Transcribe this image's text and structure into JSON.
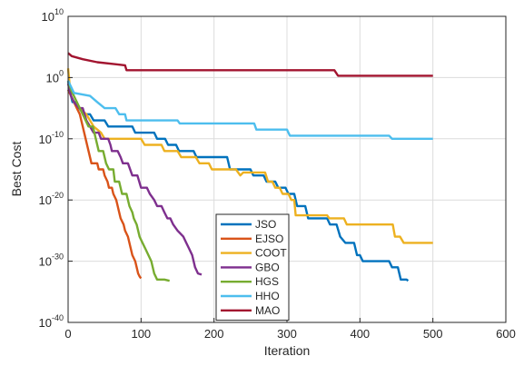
{
  "chart_data": {
    "type": "line",
    "title": "",
    "xlabel": "Iteration",
    "ylabel": "Best Cost",
    "xlim": [
      0,
      600
    ],
    "xticks": [
      0,
      100,
      200,
      300,
      400,
      500,
      600
    ],
    "yscale": "log",
    "ylim_exponent": [
      -40,
      10
    ],
    "yticks_exponent": [
      10,
      0,
      -10,
      -20,
      -30,
      -40
    ],
    "ytick_labels": [
      "10",
      "0",
      "-10",
      "-20",
      "-30",
      "-40"
    ],
    "grid": true,
    "legend_position": "bottom-center",
    "series": [
      {
        "name": "JSO",
        "color": "#0072bd",
        "points": [
          [
            0,
            -0.5
          ],
          [
            2,
            -2
          ],
          [
            6,
            -4
          ],
          [
            12,
            -4
          ],
          [
            15,
            -5
          ],
          [
            22,
            -6
          ],
          [
            30,
            -6
          ],
          [
            35,
            -7
          ],
          [
            50,
            -7
          ],
          [
            55,
            -8
          ],
          [
            88,
            -8
          ],
          [
            92,
            -9
          ],
          [
            118,
            -9
          ],
          [
            122,
            -10
          ],
          [
            133,
            -10
          ],
          [
            137,
            -11
          ],
          [
            148,
            -11
          ],
          [
            152,
            -12
          ],
          [
            172,
            -12
          ],
          [
            176,
            -13
          ],
          [
            218,
            -13
          ],
          [
            222,
            -15
          ],
          [
            250,
            -15
          ],
          [
            254,
            -16
          ],
          [
            268,
            -16
          ],
          [
            272,
            -17
          ],
          [
            284,
            -17
          ],
          [
            288,
            -18
          ],
          [
            298,
            -18
          ],
          [
            302,
            -19
          ],
          [
            310,
            -19
          ],
          [
            314,
            -21
          ],
          [
            325,
            -21
          ],
          [
            329,
            -23
          ],
          [
            355,
            -23
          ],
          [
            359,
            -24
          ],
          [
            368,
            -24
          ],
          [
            373,
            -26
          ],
          [
            380,
            -27
          ],
          [
            392,
            -27
          ],
          [
            396,
            -29
          ],
          [
            400,
            -29
          ],
          [
            404,
            -30
          ],
          [
            440,
            -30
          ],
          [
            444,
            -31
          ],
          [
            452,
            -31
          ],
          [
            456,
            -33
          ],
          [
            464,
            -33
          ],
          [
            466,
            -33.2
          ]
        ]
      },
      {
        "name": "EJSO",
        "color": "#d95319",
        "points": [
          [
            0,
            -2
          ],
          [
            4,
            -3
          ],
          [
            8,
            -4
          ],
          [
            12,
            -5
          ],
          [
            16,
            -6
          ],
          [
            20,
            -8
          ],
          [
            24,
            -10
          ],
          [
            28,
            -12
          ],
          [
            32,
            -14
          ],
          [
            40,
            -14
          ],
          [
            42,
            -15
          ],
          [
            48,
            -15
          ],
          [
            50,
            -16
          ],
          [
            54,
            -17
          ],
          [
            56,
            -18
          ],
          [
            60,
            -18
          ],
          [
            62,
            -19
          ],
          [
            66,
            -20
          ],
          [
            68,
            -21
          ],
          [
            70,
            -22
          ],
          [
            72,
            -23
          ],
          [
            76,
            -24
          ],
          [
            78,
            -25
          ],
          [
            82,
            -26
          ],
          [
            86,
            -28
          ],
          [
            88,
            -29
          ],
          [
            92,
            -30
          ],
          [
            94,
            -31
          ],
          [
            96,
            -32
          ],
          [
            98,
            -32.5
          ],
          [
            100,
            -32.8
          ]
        ]
      },
      {
        "name": "COOT",
        "color": "#edb120",
        "points": [
          [
            0,
            1.5
          ],
          [
            2,
            -1
          ],
          [
            4,
            -3
          ],
          [
            8,
            -4
          ],
          [
            15,
            -5
          ],
          [
            25,
            -6
          ],
          [
            35,
            -8
          ],
          [
            45,
            -9
          ],
          [
            50,
            -10
          ],
          [
            100,
            -10
          ],
          [
            105,
            -11
          ],
          [
            128,
            -11
          ],
          [
            132,
            -12
          ],
          [
            150,
            -12
          ],
          [
            155,
            -13
          ],
          [
            175,
            -13
          ],
          [
            180,
            -14
          ],
          [
            193,
            -14
          ],
          [
            197,
            -15
          ],
          [
            230,
            -15
          ],
          [
            236,
            -16
          ],
          [
            240,
            -15.5
          ],
          [
            270,
            -15.5
          ],
          [
            274,
            -17
          ],
          [
            280,
            -17
          ],
          [
            284,
            -18
          ],
          [
            290,
            -18
          ],
          [
            294,
            -19
          ],
          [
            302,
            -19
          ],
          [
            306,
            -20
          ],
          [
            310,
            -20
          ],
          [
            312,
            -22.5
          ],
          [
            355,
            -22.5
          ],
          [
            358,
            -23
          ],
          [
            378,
            -23
          ],
          [
            382,
            -24
          ],
          [
            445,
            -24
          ],
          [
            448,
            -26
          ],
          [
            455,
            -26
          ],
          [
            460,
            -27
          ],
          [
            500,
            -27
          ]
        ]
      },
      {
        "name": "GBO",
        "color": "#7e2f8e",
        "points": [
          [
            0,
            -1
          ],
          [
            4,
            -3
          ],
          [
            8,
            -4
          ],
          [
            15,
            -5
          ],
          [
            20,
            -5
          ],
          [
            25,
            -7
          ],
          [
            30,
            -8
          ],
          [
            35,
            -9
          ],
          [
            42,
            -9
          ],
          [
            45,
            -10
          ],
          [
            55,
            -10
          ],
          [
            58,
            -11
          ],
          [
            60,
            -12
          ],
          [
            68,
            -12
          ],
          [
            72,
            -13
          ],
          [
            75,
            -14
          ],
          [
            82,
            -14
          ],
          [
            88,
            -16
          ],
          [
            95,
            -16
          ],
          [
            100,
            -18
          ],
          [
            108,
            -18
          ],
          [
            112,
            -19
          ],
          [
            118,
            -20
          ],
          [
            122,
            -21
          ],
          [
            128,
            -21
          ],
          [
            132,
            -22
          ],
          [
            136,
            -23
          ],
          [
            140,
            -23
          ],
          [
            144,
            -24
          ],
          [
            150,
            -25
          ],
          [
            158,
            -26
          ],
          [
            162,
            -27
          ],
          [
            166,
            -28
          ],
          [
            170,
            -29
          ],
          [
            174,
            -31
          ],
          [
            178,
            -32
          ],
          [
            183,
            -32.2
          ]
        ]
      },
      {
        "name": "HGS",
        "color": "#77ac30",
        "points": [
          [
            0,
            -0.5
          ],
          [
            4,
            -2
          ],
          [
            8,
            -3
          ],
          [
            12,
            -4
          ],
          [
            16,
            -5
          ],
          [
            20,
            -6
          ],
          [
            24,
            -7
          ],
          [
            28,
            -8
          ],
          [
            34,
            -8
          ],
          [
            38,
            -10
          ],
          [
            42,
            -12
          ],
          [
            48,
            -12
          ],
          [
            52,
            -14
          ],
          [
            56,
            -15
          ],
          [
            62,
            -15
          ],
          [
            64,
            -17
          ],
          [
            70,
            -17
          ],
          [
            74,
            -19
          ],
          [
            80,
            -19
          ],
          [
            84,
            -21
          ],
          [
            88,
            -22
          ],
          [
            90,
            -23
          ],
          [
            94,
            -24
          ],
          [
            98,
            -26
          ],
          [
            102,
            -27
          ],
          [
            106,
            -28
          ],
          [
            110,
            -29
          ],
          [
            114,
            -30
          ],
          [
            118,
            -32
          ],
          [
            122,
            -33
          ],
          [
            132,
            -33
          ],
          [
            139,
            -33.2
          ]
        ]
      },
      {
        "name": "HHO",
        "color": "#4dbeee",
        "points": [
          [
            0,
            -0.5
          ],
          [
            4,
            -1.5
          ],
          [
            8,
            -2.5
          ],
          [
            30,
            -3
          ],
          [
            40,
            -4
          ],
          [
            50,
            -5
          ],
          [
            65,
            -5
          ],
          [
            70,
            -6
          ],
          [
            78,
            -6
          ],
          [
            80,
            -7
          ],
          [
            150,
            -7
          ],
          [
            153,
            -7.5
          ],
          [
            255,
            -7.5
          ],
          [
            258,
            -8.5
          ],
          [
            300,
            -8.5
          ],
          [
            304,
            -9.5
          ],
          [
            440,
            -9.5
          ],
          [
            444,
            -10
          ],
          [
            500,
            -10
          ]
        ]
      },
      {
        "name": "MAO",
        "color": "#a2142f",
        "points": [
          [
            0,
            4
          ],
          [
            5,
            3.5
          ],
          [
            20,
            3
          ],
          [
            40,
            2.5
          ],
          [
            78,
            2
          ],
          [
            80,
            1.2
          ],
          [
            365,
            1.2
          ],
          [
            370,
            0.3
          ],
          [
            500,
            0.3
          ]
        ]
      }
    ]
  }
}
